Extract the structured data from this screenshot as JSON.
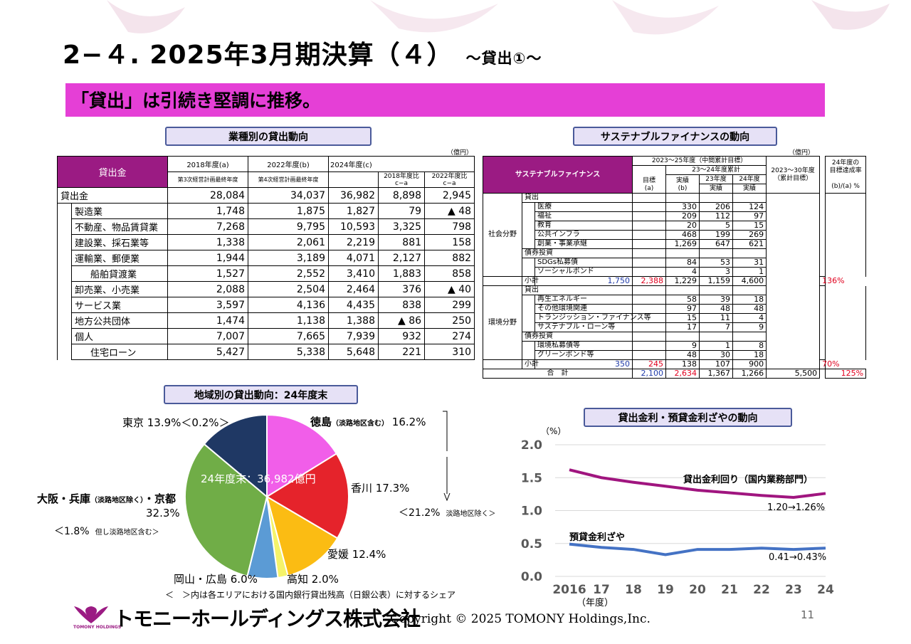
{
  "title": "2−４. 2025年3月期決算（４）",
  "title_sub": "～貸出①～",
  "headline": "「貸出」は引続き堅調に推移。",
  "sections": {
    "industry": "業種別の貸出動向",
    "sustainable": "サステナブルファイナンスの動向",
    "region": "地域別の貸出動向：24年度末",
    "rates": "貸出金利・預貸金利ざやの動向"
  },
  "loan_table": {
    "unit": "（億円）",
    "header_label": "貸出金",
    "col_2018": "2018年度(a)",
    "col_2018_sub": "第3次経営計画最終年度",
    "col_2022": "2022年度(b)",
    "col_2022_sub": "第4次経営計画最終年度",
    "col_2024": "2024年度(c)",
    "col_vs2018": "2018年度比",
    "col_vs2018_sub": "c−a",
    "col_vs2022": "2022年度比",
    "col_vs2022_sub": "c−a",
    "rows": [
      {
        "label": "貸出金",
        "v2018": "28,084",
        "v2022": "34,037",
        "v2024": "36,982",
        "d2018": "8,898",
        "d2022": "2,945"
      },
      {
        "label": "製造業",
        "v2018": "1,748",
        "v2022": "1,875",
        "v2024": "1,827",
        "d2018": "79",
        "d2022": "▲ 48"
      },
      {
        "label": "不動産、物品賃貸業",
        "v2018": "7,268",
        "v2022": "9,795",
        "v2024": "10,593",
        "d2018": "3,325",
        "d2022": "798"
      },
      {
        "label": "建設業、採石業等",
        "v2018": "1,338",
        "v2022": "2,061",
        "v2024": "2,219",
        "d2018": "881",
        "d2022": "158"
      },
      {
        "label": "運輸業、郵便業",
        "v2018": "1,944",
        "v2022": "3,189",
        "v2024": "4,071",
        "d2018": "2,127",
        "d2022": "882"
      },
      {
        "label": "船舶貸渡業",
        "v2018": "1,527",
        "v2022": "2,552",
        "v2024": "3,410",
        "d2018": "1,883",
        "d2022": "858"
      },
      {
        "label": "卸売業、小売業",
        "v2018": "2,088",
        "v2022": "2,504",
        "v2024": "2,464",
        "d2018": "376",
        "d2022": "▲ 40"
      },
      {
        "label": "サービス業",
        "v2018": "3,597",
        "v2022": "4,136",
        "v2024": "4,435",
        "d2018": "838",
        "d2022": "299"
      },
      {
        "label": "地方公共団体",
        "v2018": "1,474",
        "v2022": "1,138",
        "v2024": "1,388",
        "d2018": "▲ 86",
        "d2022": "250"
      },
      {
        "label": "個人",
        "v2018": "7,007",
        "v2022": "7,665",
        "v2024": "7,939",
        "d2018": "932",
        "d2022": "274"
      },
      {
        "label": "住宅ローン",
        "v2018": "5,427",
        "v2022": "5,338",
        "v2024": "5,648",
        "d2018": "221",
        "d2022": "310"
      }
    ]
  },
  "sf_table": {
    "unit": "（億円）",
    "header_label": "サステナブルファイナンス",
    "h_midterm": "2023～25年度（中間累計目標）",
    "h_cum": "23～24年度累計",
    "h_target": "目標",
    "h_target_sub": "(a)",
    "h_actual": "実績",
    "h_actual_sub": "(b)",
    "h_23": "23年度",
    "h_24": "24年度",
    "h_result": "実績",
    "h_2030": "2023～30年度",
    "h_2030_sub": "（累計目標）",
    "h_rate": "24年度の",
    "h_rate2": "目標達成率",
    "h_rate3": "(b)/(a) %",
    "social_label": "社会分野",
    "env_label": "環境分野",
    "loan_label": "貸出",
    "bond_label": "債券投資",
    "social_loans": [
      {
        "label": "医療",
        "b": "330",
        "y23": "206",
        "y24": "124"
      },
      {
        "label": "福祉",
        "b": "209",
        "y23": "112",
        "y24": "97"
      },
      {
        "label": "教育",
        "b": "20",
        "y23": "5",
        "y24": "15"
      },
      {
        "label": "公共インフラ",
        "b": "468",
        "y23": "199",
        "y24": "269"
      },
      {
        "label": "創業・事業承継",
        "b": "1,269",
        "y23": "647",
        "y24": "621"
      }
    ],
    "social_bonds": [
      {
        "label": "SDGs私募債",
        "b": "84",
        "y23": "53",
        "y24": "31"
      },
      {
        "label": "ソーシャルボンド",
        "b": "4",
        "y23": "3",
        "y24": "1"
      }
    ],
    "social_subtotal": {
      "label": "小計",
      "a": "1,750",
      "b": "2,388",
      "y23": "1,229",
      "y24": "1,159",
      "target2030": "4,600",
      "rate": "136%"
    },
    "env_loans": [
      {
        "label": "再生エネルギー",
        "b": "58",
        "y23": "39",
        "y24": "18"
      },
      {
        "label": "その他環境関連",
        "b": "97",
        "y23": "48",
        "y24": "48"
      },
      {
        "label": "トランジッション・ファイナンス等",
        "b": "15",
        "y23": "11",
        "y24": "4"
      },
      {
        "label": "サステナブル・ローン等",
        "b": "17",
        "y23": "7",
        "y24": "9"
      }
    ],
    "env_bonds": [
      {
        "label": "環境私募債等",
        "b": "9",
        "y23": "1",
        "y24": "8"
      },
      {
        "label": "グリーンボンド等",
        "b": "48",
        "y23": "30",
        "y24": "18"
      }
    ],
    "env_subtotal": {
      "label": "小計",
      "a": "350",
      "b": "245",
      "y23": "138",
      "y24": "107",
      "target2030": "900",
      "rate": "70%"
    },
    "total": {
      "label": "合　計",
      "a": "2,100",
      "b": "2,634",
      "y23": "1,367",
      "y24": "1,266",
      "target2030": "5,500",
      "rate": "125%"
    }
  },
  "pie": {
    "center_label": "24年度末：36,982億円",
    "slices": [
      {
        "name": "徳島",
        "value": 16.2,
        "color": "#f15ee9"
      },
      {
        "name": "香川",
        "value": 17.3,
        "color": "#e5232b"
      },
      {
        "name": "愛媛",
        "value": 12.4,
        "color": "#fbbc13"
      },
      {
        "name": "高知",
        "value": 2.0,
        "color": "#f5f36a"
      },
      {
        "name": "岡山・広島",
        "value": 6.0,
        "color": "#5b9bd5"
      },
      {
        "name": "大阪・兵庫・京都",
        "value": 32.3,
        "color": "#70ad47"
      },
      {
        "name": "東京",
        "value": 13.9,
        "color": "#1f3864"
      }
    ],
    "labels": {
      "tokushima": "徳島",
      "tokushima_note": "（淡路地区含む）",
      "tokushima_pct": "16.2%",
      "kagawa": "香川 17.3%",
      "ehime": "愛媛 12.4%",
      "kochi": "高知 2.0%",
      "okayama": "岡山・広島 6.0%",
      "osaka1": "大阪・兵庫",
      "osaka_note": "（淡路地区除く）",
      "osaka2": "・京都",
      "osaka_pct": "32.3%",
      "osaka_share": "＜1.8%",
      "osaka_share_note": "但し淡路地区含む＞",
      "tokyo": "東京 13.9%＜0.2%＞",
      "shikoku_share": "＜21.2%",
      "shikoku_note": "淡路地区除く＞"
    }
  },
  "chart_data": {
    "type": "line",
    "x": [
      "2016",
      "17",
      "18",
      "19",
      "20",
      "21",
      "22",
      "23",
      "24"
    ],
    "xlabel": "（年度）",
    "ylabel": "（%）",
    "ylim": [
      0.0,
      2.0
    ],
    "yticks": [
      "0.0",
      "0.5",
      "1.0",
      "1.5",
      "2.0"
    ],
    "series": [
      {
        "name": "貸出金利回り（国内業務部門）",
        "color": "#a0157f",
        "values": [
          1.62,
          1.5,
          1.43,
          1.37,
          1.31,
          1.27,
          1.23,
          1.2,
          1.26
        ]
      },
      {
        "name": "預貸金利ざや",
        "color": "#4472c4",
        "values": [
          0.49,
          0.44,
          0.41,
          0.33,
          0.41,
          0.41,
          0.43,
          0.41,
          0.43
        ]
      }
    ],
    "annotations": [
      "1.20→1.26%",
      "0.41→0.43%"
    ],
    "grid": true
  },
  "footer": {
    "note": "＜　＞内は各エリアにおける国内銀行貸出残高（日銀公表）に対するシェア",
    "company": "トモニーホールディングス株式会社",
    "logo_text": "TOMONY HOLDINGS",
    "copyright": "Copyright © 2025 TOMONY Holdings,Inc.",
    "page": "11"
  },
  "colors": {
    "accent": "#e53fd6",
    "header_purple": "#9b1b83",
    "section_bg": "#e6e1f6",
    "section_border": "#4a5a9a"
  }
}
